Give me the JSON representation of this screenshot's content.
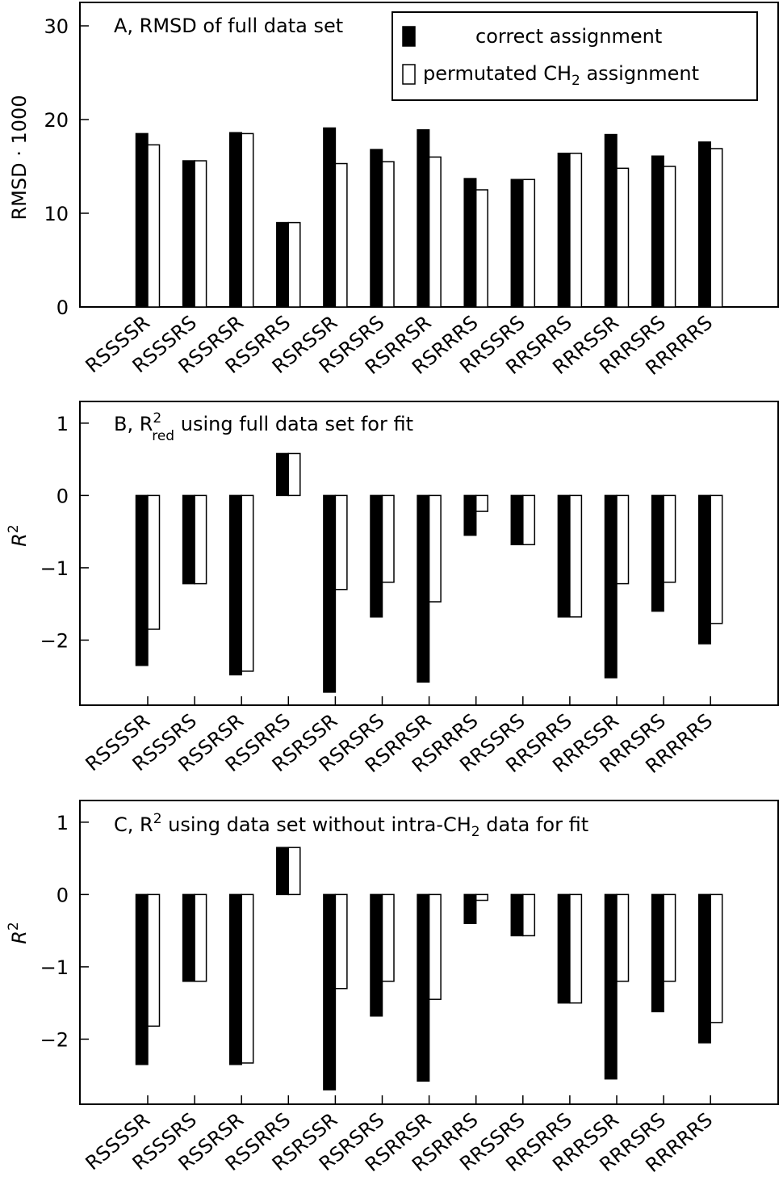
{
  "colors": {
    "correct": "#000000",
    "permutated": "#ffffff",
    "stroke": "#000000",
    "background": "#ffffff"
  },
  "legend": {
    "items": [
      {
        "label": "correct assignment",
        "swatch": "filled"
      },
      {
        "label": "permutated CH",
        "sub": "2",
        "suffix": " assignment",
        "swatch": "open"
      }
    ]
  },
  "chart_data": [
    {
      "type": "bar",
      "panel": "A",
      "title": "A, RMSD of full data set",
      "ylabel": "RMSD · 1000",
      "ylim": [
        0,
        32.5
      ],
      "yticks": [
        "30",
        "20",
        "10",
        "0"
      ],
      "ytick_values": [
        30,
        20,
        10,
        0
      ],
      "categories": [
        "RSSSSR",
        "RSSSRS",
        "RSSRSR",
        "RSSRRS",
        "RSRSSR",
        "RSRSRS",
        "RSRRSR",
        "RSRRRS",
        "RRSSRS",
        "RRSRRS",
        "RRRSSR",
        "RRRSRS",
        "RRRRRS"
      ],
      "series": [
        {
          "name": "correct assignment",
          "values": [
            18.5,
            15.6,
            18.6,
            9.0,
            19.1,
            16.8,
            18.9,
            13.7,
            13.6,
            16.4,
            18.4,
            16.1,
            17.6
          ]
        },
        {
          "name": "permutated CH2 assignment",
          "values": [
            17.3,
            15.6,
            18.5,
            9.0,
            15.3,
            15.5,
            16.0,
            12.5,
            13.6,
            16.4,
            14.8,
            15.0,
            16.9
          ]
        }
      ]
    },
    {
      "type": "bar",
      "panel": "B",
      "title": "B, R",
      "title_sup": "2",
      "title_sub": "red",
      "title_rest": " using full data set for fit",
      "ylabel": "R",
      "ylabel_sup": "2",
      "ylim": [
        -2.9,
        1.3
      ],
      "yticks": [
        "1",
        "0",
        "−1",
        "−2"
      ],
      "ytick_values": [
        1,
        0,
        -1,
        -2
      ],
      "categories": [
        "RSSSSR",
        "RSSSRS",
        "RSSRSR",
        "RSSRRS",
        "RSRSSR",
        "RSRSRS",
        "RSRRSR",
        "RSRRRS",
        "RRSSRS",
        "RRSRRS",
        "RRRSSR",
        "RRRSRS",
        "RRRRRS"
      ],
      "series": [
        {
          "name": "correct assignment",
          "values": [
            -2.35,
            -1.22,
            -2.48,
            0.58,
            -2.72,
            -1.68,
            -2.58,
            -0.55,
            -0.68,
            -1.68,
            -2.52,
            -1.6,
            -2.05
          ]
        },
        {
          "name": "permutated CH2 assignment",
          "values": [
            -1.85,
            -1.22,
            -2.43,
            0.58,
            -1.3,
            -1.2,
            -1.47,
            -0.22,
            -0.68,
            -1.68,
            -1.22,
            -1.2,
            -1.77
          ]
        }
      ]
    },
    {
      "type": "bar",
      "panel": "C",
      "title": "C, R",
      "title_sup": "2",
      "title_rest": " using data set without intra-CH",
      "title_sub2": "2",
      "title_rest2": " data for fit",
      "ylabel": "R",
      "ylabel_sup": "2",
      "ylim": [
        -2.9,
        1.3
      ],
      "yticks": [
        "1",
        "0",
        "−1",
        "−2"
      ],
      "ytick_values": [
        1,
        0,
        -1,
        -2
      ],
      "categories": [
        "RSSSSR",
        "RSSSRS",
        "RSSRSR",
        "RSSRRS",
        "RSRSSR",
        "RSRSRS",
        "RSRRSR",
        "RSRRRS",
        "RRSSRS",
        "RRSRRS",
        "RRRSSR",
        "RRRSRS",
        "RRRRRS"
      ],
      "series": [
        {
          "name": "correct assignment",
          "values": [
            -2.35,
            -1.2,
            -2.35,
            0.65,
            -2.7,
            -1.68,
            -2.58,
            -0.4,
            -0.57,
            -1.5,
            -2.55,
            -1.62,
            -2.05
          ]
        },
        {
          "name": "permutated CH2 assignment",
          "values": [
            -1.82,
            -1.2,
            -2.33,
            0.65,
            -1.3,
            -1.2,
            -1.45,
            -0.08,
            -0.57,
            -1.5,
            -1.2,
            -1.2,
            -1.77
          ]
        }
      ]
    }
  ]
}
